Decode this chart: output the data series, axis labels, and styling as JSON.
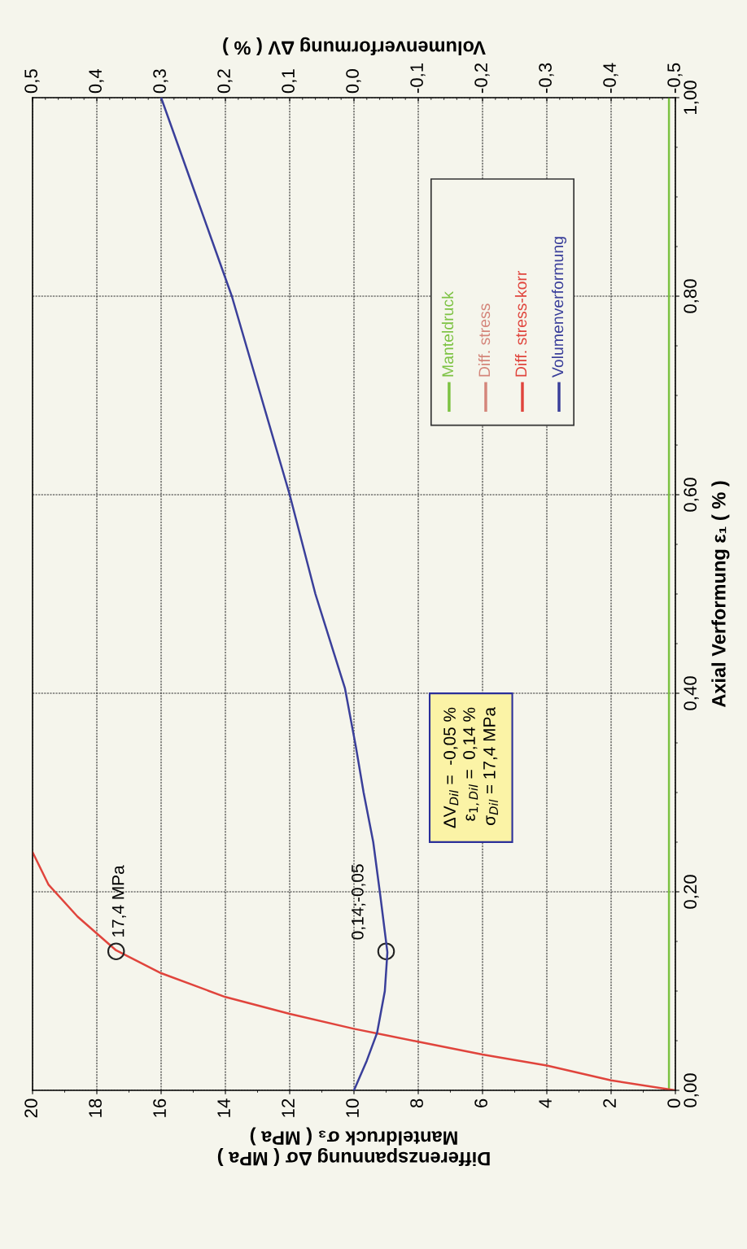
{
  "chart_data": {
    "type": "line",
    "xlabel": "Differenzspannung Δσ ( MPa )\nManteldruck σ₃ ( MPa )",
    "ylabel": "Axial Verformung ε₁ ( % )",
    "x2label": "Volumenverformung ΔV ( % )",
    "xlim": [
      20,
      0
    ],
    "xticks": [
      0,
      2,
      4,
      6,
      8,
      10,
      12,
      14,
      16,
      18,
      20
    ],
    "ylim": [
      0,
      1
    ],
    "yticks": [
      {
        "value": 0,
        "label": "0,00"
      },
      {
        "value": 0.2,
        "label": "0,20"
      },
      {
        "value": 0.4,
        "label": "0,40"
      },
      {
        "value": 0.6,
        "label": "0,60"
      },
      {
        "value": 0.8,
        "label": "0,80"
      },
      {
        "value": 1.0,
        "label": "1,00"
      }
    ],
    "x2lim": [
      0.5,
      -0.5
    ],
    "x2ticks": [
      {
        "value": -0.5,
        "label": "-0,5"
      },
      {
        "value": -0.4,
        "label": "-0,4"
      },
      {
        "value": -0.3,
        "label": "-0,3"
      },
      {
        "value": -0.2,
        "label": "-0,2"
      },
      {
        "value": -0.1,
        "label": "-0,1"
      },
      {
        "value": 0,
        "label": "0,0"
      },
      {
        "value": 0.1,
        "label": "0,1"
      },
      {
        "value": 0.2,
        "label": "0,2"
      },
      {
        "value": 0.3,
        "label": "0,3"
      },
      {
        "value": 0.4,
        "label": "0,4"
      },
      {
        "value": 0.5,
        "label": "0,5"
      }
    ],
    "grid": true,
    "legend": "top right",
    "series": [
      {
        "name": "Manteldruck",
        "color": "#7cc242",
        "x": [
          0.2,
          0.2
        ],
        "values": [
          0,
          1.0
        ]
      },
      {
        "name": "Diff. stress",
        "color": "#d4857a",
        "values": [
          null
        ]
      },
      {
        "name": "Diff. stress-korr",
        "color": "#e0443c",
        "x": [
          0,
          2,
          4,
          6,
          8,
          10,
          12,
          14,
          16,
          17.4,
          18.6,
          19.5,
          20
        ],
        "values": [
          0,
          0.01,
          0.025,
          0.036,
          0.049,
          0.062,
          0.077,
          0.094,
          0.118,
          0.141,
          0.175,
          0.207,
          0.24
        ]
      },
      {
        "name": "Volumenverformung",
        "color": "#3a3f9a",
        "axis": "x2",
        "x": [
          0,
          -0.02,
          -0.036,
          -0.048,
          -0.052,
          -0.041,
          -0.03,
          -0.015,
          -0.003,
          0.014,
          0.031,
          0.06,
          0.1,
          0.145,
          0.19,
          0.245,
          0.3
        ],
        "values": [
          0,
          0.03,
          0.058,
          0.1,
          0.139,
          0.196,
          0.25,
          0.3,
          0.346,
          0.405,
          0.44,
          0.5,
          0.6,
          0.7,
          0.8,
          0.9,
          1.0
        ]
      }
    ],
    "annotations": [
      {
        "text": "17,4 MPa",
        "x": 17.4,
        "y": 0.14
      },
      {
        "text": "0,14;-0,05",
        "x": 9.0,
        "y": 0.14
      },
      "ΔV$_{Dil}$ =  -0,05 %",
      "ε$_{1,Dil}$ =  0,14 %",
      "σ$_{Dil}$ = 17,4 MPa"
    ]
  }
}
